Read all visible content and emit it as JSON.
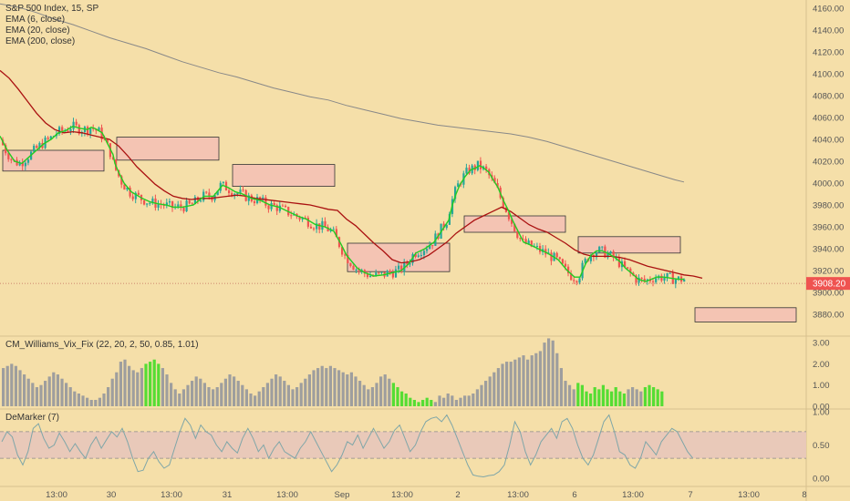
{
  "main_legend": {
    "symbol": "S&P 500 Index, 15, SP",
    "ema6": "EMA (6, close)",
    "ema20": "EMA (20, close)",
    "ema200": "EMA (200, close)"
  },
  "price_badge": "3908.20",
  "vix_legend": "CM_Williams_Vix_Fix (22, 20, 2, 50, 0.85, 1.01)",
  "demarker_legend": "DeMarker (7)",
  "colors": {
    "background": "#f5dfa9",
    "up": "#26a69a",
    "down": "#ef5350",
    "ema6": "#22cc22",
    "ema20": "#aa1111",
    "ema200": "#888888",
    "vix_gray": "#9e9e9e",
    "vix_green": "#55dd33",
    "zone_fill": "#f4c4b3",
    "badge": "#ef5350"
  },
  "chart_data": [
    {
      "type": "candlestick",
      "yaxis_ticks": [
        "4160.00",
        "4140.00",
        "4120.00",
        "4100.00",
        "4080.00",
        "4060.00",
        "4040.00",
        "4020.00",
        "4000.00",
        "3980.00",
        "3960.00",
        "3940.00",
        "3920.00",
        "3900.00",
        "3880.00"
      ],
      "ylim": [
        3872,
        4172
      ],
      "series": [
        {
          "name": "EMA (6, close)",
          "type": "line",
          "x": [
            0,
            8,
            16,
            24,
            32,
            40,
            48,
            56,
            64,
            72,
            80,
            88,
            96,
            100,
            104,
            108,
            112,
            118,
            124,
            126,
            130,
            136,
            144,
            156,
            164,
            168,
            174,
            182,
            190,
            200,
            212,
            224,
            234,
            240,
            244,
            250,
            258,
            266,
            276,
            286,
            296,
            306,
            316,
            326,
            336,
            346,
            356,
            366,
            374,
            380,
            384,
            392,
            400,
            410,
            420,
            430,
            440,
            448,
            456,
            466,
            476,
            484,
            492,
            496,
            500,
            504,
            510,
            516,
            522,
            526,
            530,
            536,
            540,
            546,
            552,
            558,
            562,
            568,
            574,
            580,
            590,
            600,
            612,
            622,
            630,
            636,
            642,
            648,
            654,
            660,
            666,
            674,
            680,
            686,
            692,
            700,
            708,
            714,
            720,
            728,
            736,
            744,
            750
          ],
          "values": [
            4043,
            4030,
            4020,
            4018,
            4024,
            4030,
            4036,
            4040,
            4046,
            4048,
            4052,
            4050,
            4049,
            4051,
            4050,
            4048,
            4046,
            4036,
            4026,
            4018,
            4010,
            4000,
            3992,
            3986,
            3983,
            3982,
            3981,
            3980,
            3978,
            3978,
            3980,
            3988,
            3988,
            3994,
            3998,
            3996,
            3992,
            3990,
            3986,
            3984,
            3980,
            3978,
            3974,
            3970,
            3967,
            3962,
            3960,
            3956,
            3944,
            3934,
            3930,
            3922,
            3918,
            3915,
            3916,
            3918,
            3920,
            3926,
            3936,
            3940,
            3946,
            3956,
            3966,
            3980,
            3990,
            3998,
            4006,
            4012,
            4014,
            4016,
            4014,
            4010,
            4004,
            3996,
            3984,
            3974,
            3966,
            3956,
            3946,
            3944,
            3940,
            3936,
            3930,
            3920,
            3914,
            3914,
            3926,
            3934,
            3938,
            3938,
            3936,
            3932,
            3928,
            3922,
            3918,
            3912,
            3910,
            3912,
            3914,
            3914,
            3913,
            3912,
            3912
          ]
        },
        {
          "name": "EMA (20, close)",
          "type": "line",
          "x": [
            0,
            10,
            20,
            30,
            40,
            50,
            60,
            70,
            80,
            90,
            100,
            110,
            120,
            130,
            140,
            150,
            160,
            170,
            180,
            190,
            200,
            210,
            220,
            230,
            240,
            250,
            260,
            270,
            280,
            290,
            300,
            310,
            320,
            330,
            340,
            350,
            360,
            370,
            380,
            390,
            400,
            410,
            420,
            430,
            440,
            450,
            460,
            470,
            480,
            490,
            500,
            510,
            520,
            530,
            540,
            550,
            560,
            570,
            580,
            590,
            600,
            610,
            620,
            630,
            640,
            650,
            660,
            670,
            680,
            690,
            700,
            710,
            720,
            730,
            740,
            750,
            760,
            770
          ],
          "values": [
            4103,
            4096,
            4086,
            4075,
            4064,
            4055,
            4049,
            4046,
            4047,
            4046,
            4044,
            4042,
            4040,
            4034,
            4025,
            4015,
            4007,
            3999,
            3993,
            3988,
            3986,
            3985,
            3986,
            3986,
            3987,
            3988,
            3989,
            3988,
            3986,
            3985,
            3984,
            3983,
            3982,
            3981,
            3980,
            3978,
            3976,
            3975,
            3967,
            3961,
            3953,
            3945,
            3938,
            3930,
            3927,
            3928,
            3930,
            3934,
            3940,
            3946,
            3954,
            3960,
            3966,
            3970,
            3974,
            3978,
            3974,
            3968,
            3962,
            3958,
            3955,
            3950,
            3945,
            3939,
            3935,
            3933,
            3933,
            3933,
            3932,
            3930,
            3927,
            3924,
            3922,
            3920,
            3918,
            3916,
            3915,
            3913
          ]
        },
        {
          "name": "EMA (200, close)",
          "type": "line",
          "x": [
            0,
            20,
            40,
            60,
            80,
            100,
            120,
            140,
            160,
            180,
            200,
            220,
            240,
            260,
            280,
            300,
            320,
            340,
            360,
            380,
            400,
            420,
            440,
            460,
            480,
            500,
            520,
            540,
            560,
            580,
            600,
            620,
            640,
            660,
            680,
            700,
            720,
            740,
            750
          ],
          "values": [
            4164,
            4161,
            4156,
            4150,
            4145,
            4139,
            4133,
            4128,
            4123,
            4117,
            4111,
            4106,
            4101,
            4097,
            4092,
            4087,
            4083,
            4079,
            4076,
            4071,
            4067,
            4063,
            4059,
            4056,
            4053,
            4051,
            4049,
            4047,
            4045,
            4042,
            4038,
            4033,
            4028,
            4023,
            4018,
            4013,
            4008,
            4003,
            4001
          ]
        }
      ],
      "rectangles": [
        {
          "x": [
            3,
            114
          ],
          "y": [
            4011,
            4030
          ]
        },
        {
          "x": [
            128,
            240
          ],
          "y": [
            4021,
            4042
          ]
        },
        {
          "x": [
            255,
            367
          ],
          "y": [
            3997,
            4017
          ]
        },
        {
          "x": [
            381,
            493
          ],
          "y": [
            3919,
            3945
          ]
        },
        {
          "x": [
            509,
            620
          ],
          "y": [
            3955,
            3970
          ]
        },
        {
          "x": [
            634,
            746
          ],
          "y": [
            3936,
            3951
          ]
        },
        {
          "x": [
            762,
            873
          ],
          "y": [
            3873,
            3886
          ]
        }
      ],
      "last_price": 3908.2
    },
    {
      "type": "bar",
      "title": "CM_Williams_Vix_Fix (22, 20, 2, 50, 0.85, 1.01)",
      "yaxis_ticks": [
        "3.00",
        "2.00",
        "1.00",
        "0.00"
      ],
      "ylim": [
        0,
        3.2
      ],
      "values": [
        1.8,
        1.9,
        2.0,
        1.9,
        1.7,
        1.5,
        1.3,
        1.1,
        0.9,
        1.0,
        1.2,
        1.4,
        1.6,
        1.5,
        1.3,
        1.1,
        0.9,
        0.7,
        0.6,
        0.5,
        0.4,
        0.3,
        0.3,
        0.4,
        0.6,
        0.9,
        1.3,
        1.6,
        2.1,
        2.2,
        1.9,
        1.7,
        1.6,
        1.8,
        2.0,
        2.1,
        2.2,
        2.0,
        1.8,
        1.5,
        1.1,
        0.8,
        0.6,
        0.8,
        1.0,
        1.2,
        1.4,
        1.3,
        1.1,
        0.9,
        0.8,
        0.9,
        1.1,
        1.3,
        1.5,
        1.4,
        1.2,
        1.0,
        0.8,
        0.6,
        0.5,
        0.7,
        0.9,
        1.1,
        1.3,
        1.5,
        1.4,
        1.2,
        1.0,
        0.8,
        0.9,
        1.1,
        1.3,
        1.5,
        1.7,
        1.8,
        1.9,
        1.8,
        1.9,
        1.8,
        1.7,
        1.6,
        1.5,
        1.6,
        1.4,
        1.2,
        1.0,
        0.8,
        0.9,
        1.1,
        1.4,
        1.5,
        1.3,
        1.1,
        0.9,
        0.7,
        0.6,
        0.4,
        0.3,
        0.2,
        0.3,
        0.4,
        0.3,
        0.2,
        0.5,
        0.4,
        0.6,
        0.5,
        0.3,
        0.4,
        0.5,
        0.5,
        0.6,
        0.8,
        1.0,
        1.2,
        1.4,
        1.6,
        1.8,
        2.0,
        2.1,
        2.1,
        2.2,
        2.3,
        2.4,
        2.2,
        2.4,
        2.5,
        2.6,
        3.0,
        3.2,
        3.1,
        2.5,
        1.8,
        1.2,
        1.0,
        0.8,
        1.1,
        1.0,
        0.7,
        0.6,
        0.9,
        0.8,
        1.0,
        0.8,
        0.7,
        0.9,
        0.7,
        0.6,
        0.8,
        0.9,
        0.8,
        0.7,
        0.9,
        1.0,
        0.9,
        0.8,
        0.7
      ],
      "highlight_ranges": [
        [
          34,
          37
        ],
        [
          93,
          102
        ],
        [
          137,
          148
        ],
        [
          153,
          162
        ]
      ]
    },
    {
      "type": "line",
      "title": "DeMarker (7)",
      "yaxis_ticks": [
        "1.00",
        "0.50",
        "0.00"
      ],
      "ylim": [
        0,
        1
      ],
      "band": [
        0.3,
        0.7
      ],
      "values": [
        0.55,
        0.7,
        0.62,
        0.35,
        0.2,
        0.4,
        0.75,
        0.82,
        0.6,
        0.45,
        0.5,
        0.68,
        0.55,
        0.4,
        0.52,
        0.4,
        0.3,
        0.5,
        0.62,
        0.45,
        0.58,
        0.7,
        0.62,
        0.75,
        0.55,
        0.3,
        0.1,
        0.12,
        0.3,
        0.4,
        0.25,
        0.15,
        0.2,
        0.45,
        0.7,
        0.9,
        0.8,
        0.6,
        0.8,
        0.7,
        0.65,
        0.5,
        0.4,
        0.55,
        0.45,
        0.38,
        0.6,
        0.75,
        0.6,
        0.4,
        0.5,
        0.3,
        0.45,
        0.55,
        0.4,
        0.35,
        0.3,
        0.45,
        0.55,
        0.7,
        0.55,
        0.4,
        0.25,
        0.1,
        0.2,
        0.35,
        0.55,
        0.5,
        0.65,
        0.45,
        0.6,
        0.75,
        0.6,
        0.45,
        0.55,
        0.72,
        0.8,
        0.6,
        0.4,
        0.5,
        0.7,
        0.85,
        0.9,
        0.92,
        0.85,
        0.95,
        0.8,
        0.6,
        0.4,
        0.2,
        0.05,
        0.03,
        0.02,
        0.04,
        0.05,
        0.1,
        0.2,
        0.5,
        0.85,
        0.7,
        0.4,
        0.2,
        0.35,
        0.55,
        0.65,
        0.75,
        0.6,
        0.85,
        0.9,
        0.75,
        0.5,
        0.3,
        0.2,
        0.35,
        0.6,
        0.85,
        0.95,
        0.7,
        0.4,
        0.35,
        0.2,
        0.15,
        0.3,
        0.55,
        0.45,
        0.35,
        0.55,
        0.65,
        0.75,
        0.7,
        0.55,
        0.4,
        0.3
      ]
    }
  ],
  "x_axis_labels": [
    {
      "label": "13:00",
      "pos": 62
    },
    {
      "label": "30",
      "pos": 122
    },
    {
      "label": "13:00",
      "pos": 188
    },
    {
      "label": "31",
      "pos": 249
    },
    {
      "label": "13:00",
      "pos": 315
    },
    {
      "label": "Sep",
      "pos": 375
    },
    {
      "label": "13:00",
      "pos": 441
    },
    {
      "label": "2",
      "pos": 502
    },
    {
      "label": "13:00",
      "pos": 568
    },
    {
      "label": "6",
      "pos": 630
    },
    {
      "label": "13:00",
      "pos": 694
    },
    {
      "label": "7",
      "pos": 757
    },
    {
      "label": "13:00",
      "pos": 821
    },
    {
      "label": "8",
      "pos": 882
    }
  ]
}
